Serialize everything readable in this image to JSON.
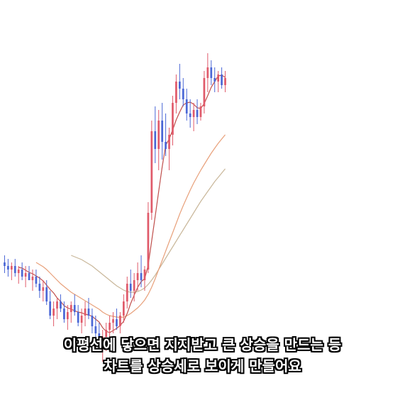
{
  "chart_data": {
    "type": "candlestick",
    "title": "",
    "xlabel": "",
    "ylabel": "",
    "axes_visible": false,
    "grid": false,
    "colors": {
      "up": "#e05a6a",
      "down": "#4a67d6",
      "ma_short": "#c0504d",
      "ma_mid": "#e8a07a",
      "ma_long": "#c9b79a"
    },
    "ylim": [
      0,
      100
    ],
    "candles": [
      {
        "o": 38,
        "h": 40,
        "l": 35,
        "c": 37
      },
      {
        "o": 37,
        "h": 39,
        "l": 34,
        "c": 36
      },
      {
        "o": 36,
        "h": 38,
        "l": 33,
        "c": 37
      },
      {
        "o": 37,
        "h": 39,
        "l": 34,
        "c": 35
      },
      {
        "o": 35,
        "h": 37,
        "l": 32,
        "c": 36
      },
      {
        "o": 36,
        "h": 38,
        "l": 33,
        "c": 34
      },
      {
        "o": 34,
        "h": 37,
        "l": 31,
        "c": 35
      },
      {
        "o": 35,
        "h": 37,
        "l": 33,
        "c": 33
      },
      {
        "o": 33,
        "h": 36,
        "l": 30,
        "c": 34
      },
      {
        "o": 34,
        "h": 36,
        "l": 31,
        "c": 32
      },
      {
        "o": 32,
        "h": 34,
        "l": 28,
        "c": 30
      },
      {
        "o": 30,
        "h": 33,
        "l": 27,
        "c": 31
      },
      {
        "o": 31,
        "h": 33,
        "l": 26,
        "c": 27
      },
      {
        "o": 27,
        "h": 30,
        "l": 22,
        "c": 23
      },
      {
        "o": 23,
        "h": 27,
        "l": 20,
        "c": 25
      },
      {
        "o": 25,
        "h": 28,
        "l": 22,
        "c": 27
      },
      {
        "o": 27,
        "h": 29,
        "l": 24,
        "c": 25
      },
      {
        "o": 25,
        "h": 27,
        "l": 21,
        "c": 22
      },
      {
        "o": 22,
        "h": 26,
        "l": 19,
        "c": 24
      },
      {
        "o": 24,
        "h": 27,
        "l": 21,
        "c": 26
      },
      {
        "o": 26,
        "h": 29,
        "l": 23,
        "c": 24
      },
      {
        "o": 24,
        "h": 26,
        "l": 20,
        "c": 21
      },
      {
        "o": 21,
        "h": 25,
        "l": 18,
        "c": 23
      },
      {
        "o": 23,
        "h": 27,
        "l": 20,
        "c": 25
      },
      {
        "o": 25,
        "h": 28,
        "l": 22,
        "c": 23
      },
      {
        "o": 23,
        "h": 25,
        "l": 18,
        "c": 20
      },
      {
        "o": 20,
        "h": 23,
        "l": 16,
        "c": 18
      },
      {
        "o": 18,
        "h": 21,
        "l": 13,
        "c": 15
      },
      {
        "o": 15,
        "h": 19,
        "l": 10,
        "c": 17
      },
      {
        "o": 17,
        "h": 21,
        "l": 13,
        "c": 19
      },
      {
        "o": 19,
        "h": 23,
        "l": 16,
        "c": 21
      },
      {
        "o": 21,
        "h": 24,
        "l": 18,
        "c": 22
      },
      {
        "o": 22,
        "h": 25,
        "l": 19,
        "c": 20
      },
      {
        "o": 20,
        "h": 24,
        "l": 18,
        "c": 23
      },
      {
        "o": 23,
        "h": 29,
        "l": 21,
        "c": 27
      },
      {
        "o": 27,
        "h": 34,
        "l": 25,
        "c": 32
      },
      {
        "o": 32,
        "h": 36,
        "l": 28,
        "c": 30
      },
      {
        "o": 30,
        "h": 35,
        "l": 27,
        "c": 33
      },
      {
        "o": 33,
        "h": 38,
        "l": 30,
        "c": 35
      },
      {
        "o": 35,
        "h": 40,
        "l": 31,
        "c": 33
      },
      {
        "o": 33,
        "h": 37,
        "l": 30,
        "c": 36
      },
      {
        "o": 36,
        "h": 55,
        "l": 35,
        "c": 52
      },
      {
        "o": 52,
        "h": 78,
        "l": 50,
        "c": 75
      },
      {
        "o": 75,
        "h": 82,
        "l": 66,
        "c": 70
      },
      {
        "o": 70,
        "h": 81,
        "l": 64,
        "c": 78
      },
      {
        "o": 78,
        "h": 83,
        "l": 67,
        "c": 72
      },
      {
        "o": 72,
        "h": 80,
        "l": 68,
        "c": 70
      },
      {
        "o": 70,
        "h": 76,
        "l": 64,
        "c": 74
      },
      {
        "o": 74,
        "h": 85,
        "l": 71,
        "c": 83
      },
      {
        "o": 83,
        "h": 91,
        "l": 80,
        "c": 89
      },
      {
        "o": 89,
        "h": 94,
        "l": 84,
        "c": 87
      },
      {
        "o": 87,
        "h": 90,
        "l": 82,
        "c": 84
      },
      {
        "o": 84,
        "h": 87,
        "l": 78,
        "c": 80
      },
      {
        "o": 80,
        "h": 84,
        "l": 76,
        "c": 79
      },
      {
        "o": 79,
        "h": 83,
        "l": 75,
        "c": 81
      },
      {
        "o": 81,
        "h": 84,
        "l": 77,
        "c": 79
      },
      {
        "o": 79,
        "h": 83,
        "l": 78,
        "c": 82
      },
      {
        "o": 82,
        "h": 92,
        "l": 80,
        "c": 90
      },
      {
        "o": 90,
        "h": 97,
        "l": 86,
        "c": 93
      },
      {
        "o": 93,
        "h": 95,
        "l": 88,
        "c": 90
      },
      {
        "o": 90,
        "h": 93,
        "l": 86,
        "c": 89
      },
      {
        "o": 89,
        "h": 92,
        "l": 86,
        "c": 91
      },
      {
        "o": 91,
        "h": 93,
        "l": 87,
        "c": 88
      },
      {
        "o": 88,
        "h": 92,
        "l": 86,
        "c": 90
      }
    ],
    "ma_short": [
      null,
      null,
      null,
      null,
      36.6,
      36.4,
      35.8,
      35.2,
      34.8,
      34.2,
      33.6,
      32.8,
      31.6,
      30.4,
      29.4,
      28.0,
      27.0,
      25.8,
      25.2,
      24.8,
      24.4,
      24.0,
      23.8,
      23.4,
      23.2,
      22.8,
      22.0,
      21.2,
      19.6,
      18.6,
      18.2,
      18.8,
      19.4,
      20.2,
      21.4,
      23.6,
      26.4,
      28.8,
      31.0,
      32.6,
      33.4,
      37.2,
      44.0,
      51.0,
      58.0,
      65.0,
      71.0,
      72.8,
      75.4,
      78.2,
      80.4,
      82.4,
      83.0,
      83.2,
      82.6,
      81.6,
      81.4,
      82.8,
      85.0,
      87.4,
      89.0,
      90.6,
      90.8,
      90.2
    ],
    "ma_mid": [
      null,
      null,
      null,
      null,
      null,
      null,
      null,
      null,
      null,
      38.0,
      37.4,
      36.8,
      36.0,
      35.0,
      34.0,
      33.0,
      32.0,
      31.2,
      30.4,
      29.6,
      29.0,
      28.4,
      27.8,
      27.2,
      26.6,
      26.0,
      25.4,
      24.8,
      24.0,
      23.4,
      23.0,
      22.8,
      22.6,
      22.5,
      22.6,
      23.0,
      23.6,
      24.4,
      25.2,
      26.2,
      27.4,
      29.0,
      31.0,
      33.4,
      36.0,
      38.6,
      41.2,
      43.8,
      46.4,
      49.0,
      51.6,
      54.0,
      56.2,
      58.4,
      60.4,
      62.2,
      64.0,
      65.6,
      67.2,
      68.8,
      70.2,
      71.6,
      72.8,
      74.0
    ],
    "ma_long": [
      null,
      null,
      null,
      null,
      null,
      null,
      null,
      null,
      null,
      null,
      null,
      null,
      null,
      null,
      null,
      null,
      null,
      null,
      null,
      40.0,
      39.6,
      39.2,
      38.8,
      38.2,
      37.6,
      37.0,
      36.2,
      35.4,
      34.6,
      33.8,
      33.0,
      32.2,
      31.4,
      30.8,
      30.2,
      29.8,
      29.6,
      29.6,
      29.8,
      30.2,
      30.8,
      31.8,
      33.0,
      34.4,
      36.0,
      37.6,
      39.2,
      40.8,
      42.4,
      44.0,
      45.6,
      47.2,
      48.8,
      50.4,
      52.0,
      53.6,
      55.2,
      56.6,
      58.0,
      59.4,
      60.8,
      62.0,
      63.2,
      64.4
    ]
  },
  "captions": {
    "line1": "이평선에 닿으면 지지받고 큰 상승을 만드는 등",
    "line2": "차트를 상승세로 보이게 만들어요"
  }
}
